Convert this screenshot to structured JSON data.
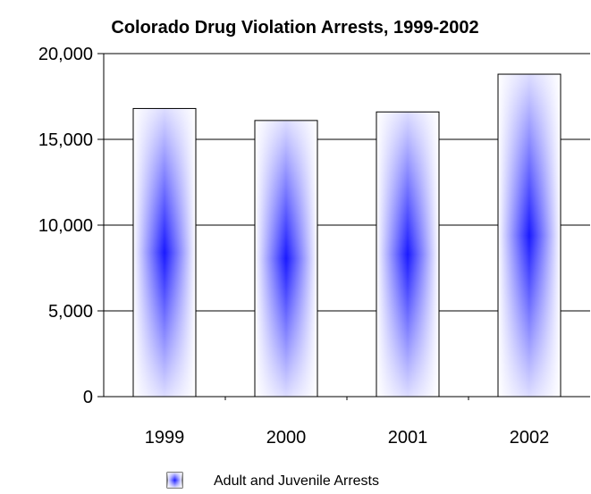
{
  "chart_data": {
    "type": "bar",
    "title": "Colorado Drug Violation Arrests, 1999-2002",
    "categories": [
      "1999",
      "2000",
      "2001",
      "2002"
    ],
    "series": [
      {
        "name": "Adult and Juvenile Arrests",
        "values": [
          16800,
          16100,
          16600,
          18800
        ]
      }
    ],
    "ylim": [
      0,
      20000
    ],
    "yticks": [
      0,
      5000,
      10000,
      15000,
      20000
    ],
    "ytick_labels": [
      "0",
      "5,000",
      "10,000",
      "15,000",
      "20,000"
    ],
    "xlabel": "",
    "ylabel": "",
    "grid": true,
    "legend_position": "bottom-center",
    "colors": {
      "bar_center": "#1a1aff",
      "bar_edge": "#ffffff",
      "bar_outline": "#000000",
      "grid": "#000000"
    }
  }
}
